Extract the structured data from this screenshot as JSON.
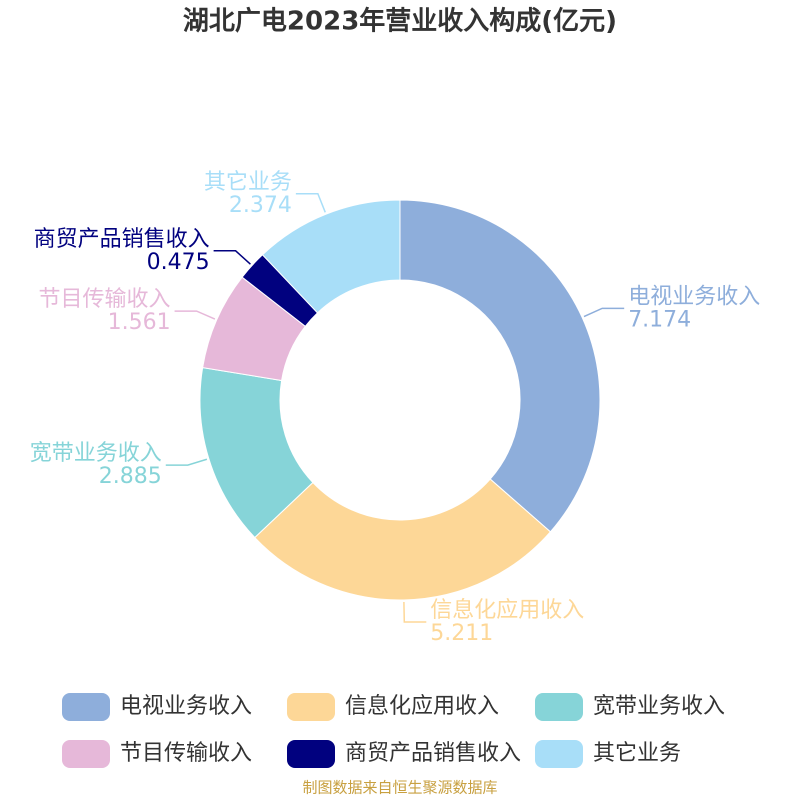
{
  "chart_data": {
    "type": "donut",
    "title": "湖北广电2023年营业收入构成(亿元)",
    "categories": [
      "电视业务收入",
      "信息化应用收入",
      "宽带业务收入",
      "节目传输收入",
      "商贸产品销售收入",
      "其它业务"
    ],
    "values": [
      7.174,
      5.211,
      2.885,
      1.561,
      0.475,
      2.374
    ],
    "colors": [
      "#8eaedb",
      "#fdd797",
      "#86d4d8",
      "#e6b8d9",
      "#01017f",
      "#a8def8"
    ],
    "source": "制图数据来自恒生聚源数据库"
  }
}
